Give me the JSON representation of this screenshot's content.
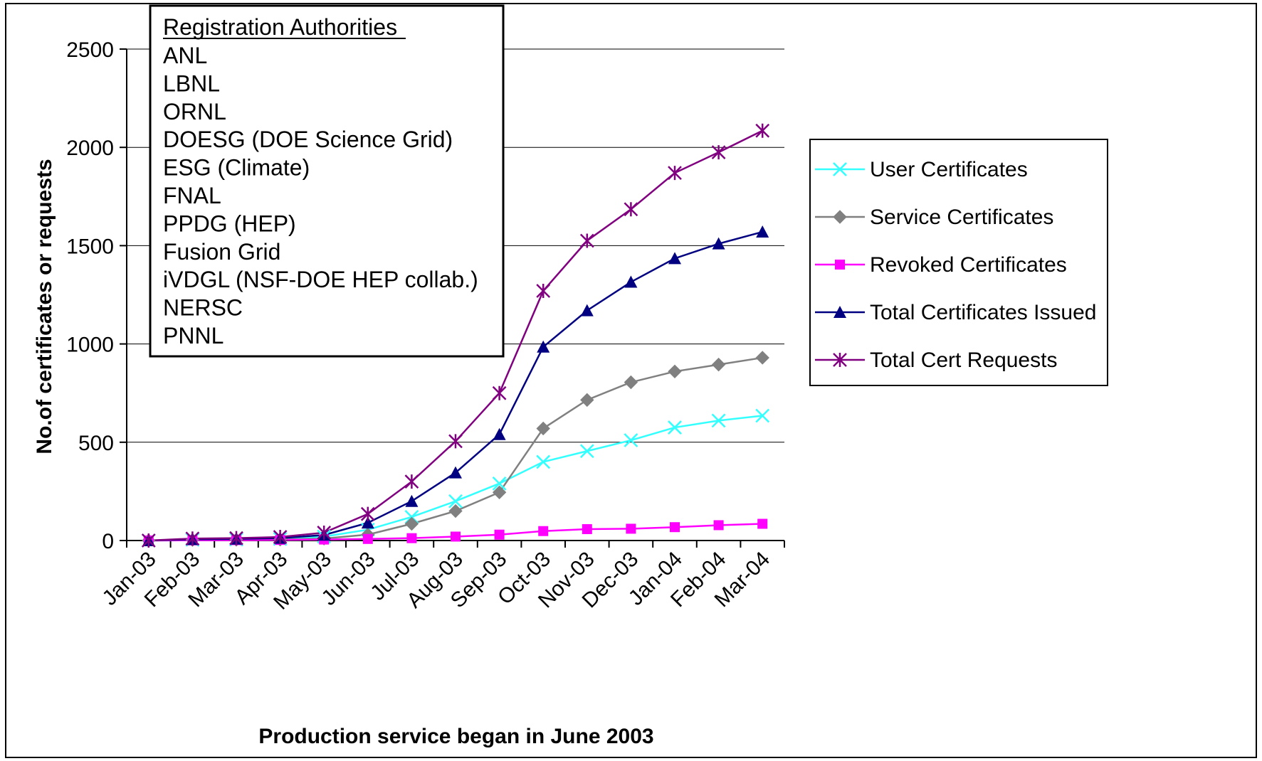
{
  "chart_data": {
    "type": "line",
    "title": "",
    "xlabel": "Production service began in June 2003",
    "ylabel": "No.of certificates or requests",
    "ylim": [
      0,
      2500
    ],
    "yticks": [
      0,
      500,
      1000,
      1500,
      2000,
      2500
    ],
    "grid": "horizontal",
    "legend_position": "right",
    "categories": [
      "Jan-03",
      "Feb-03",
      "Mar-03",
      "Apr-03",
      "May-03",
      "Jun-03",
      "Jul-03",
      "Aug-03",
      "Sep-03",
      "Oct-03",
      "Nov-03",
      "Dec-03",
      "Jan-04",
      "Feb-04",
      "Mar-04"
    ],
    "series": [
      {
        "name": "User Certificates",
        "color": "#33ffff",
        "marker": "x",
        "values": [
          0,
          4,
          5,
          8,
          20,
          55,
          120,
          200,
          290,
          400,
          455,
          510,
          575,
          610,
          635
        ]
      },
      {
        "name": "Service Certificates",
        "color": "#808080",
        "marker": "diamond",
        "values": [
          0,
          3,
          4,
          5,
          10,
          30,
          85,
          150,
          245,
          570,
          715,
          805,
          860,
          895,
          930
        ]
      },
      {
        "name": "Revoked Certificates",
        "color": "#ff00ff",
        "marker": "square",
        "values": [
          0,
          1,
          2,
          3,
          5,
          8,
          12,
          20,
          30,
          48,
          58,
          60,
          68,
          78,
          85
        ]
      },
      {
        "name": "Total Certificates Issued",
        "color": "#000080",
        "marker": "triangle",
        "values": [
          0,
          6,
          8,
          12,
          28,
          90,
          200,
          345,
          540,
          985,
          1170,
          1315,
          1435,
          1510,
          1570
        ]
      },
      {
        "name": "Total Cert Requests",
        "color": "#800080",
        "marker": "star",
        "values": [
          0,
          10,
          12,
          18,
          40,
          135,
          300,
          505,
          750,
          1270,
          1525,
          1685,
          1870,
          1975,
          2085
        ]
      }
    ],
    "annotation": {
      "heading": "Registration Authorities",
      "items": [
        "ANL",
        "LBNL",
        "ORNL",
        "DOESG (DOE Science Grid)",
        "ESG (Climate)",
        "FNAL",
        "PPDG (HEP)",
        "Fusion Grid",
        "iVDGL (NSF-DOE HEP collab.)",
        "NERSC",
        "PNNL"
      ]
    }
  }
}
